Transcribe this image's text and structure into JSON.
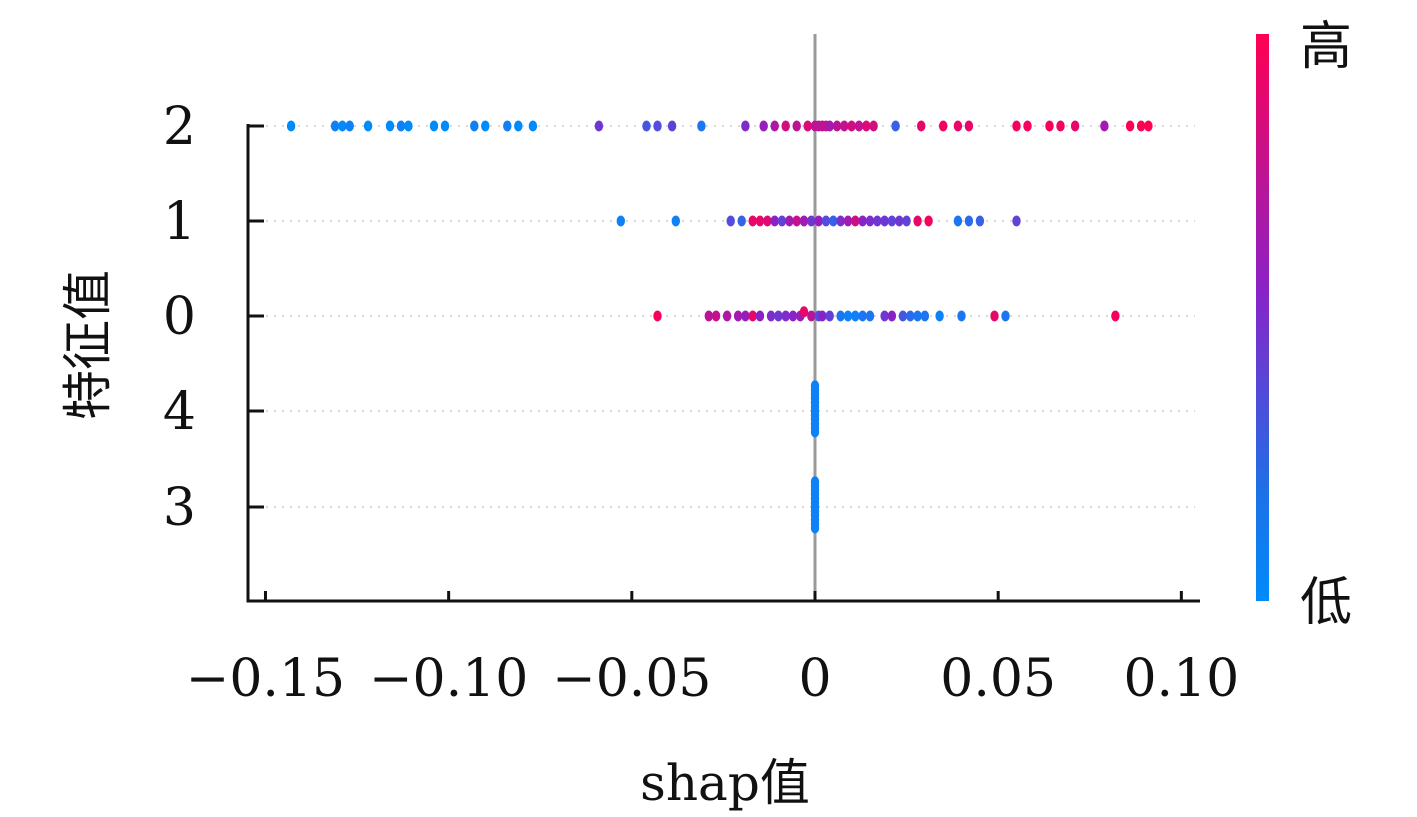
{
  "chart_data": {
    "type": "scatter",
    "subtype": "shap-beeswarm",
    "title": "",
    "xlabel": "shap值",
    "ylabel": "特征值",
    "xlim": [
      -0.155,
      0.105
    ],
    "x_ticks": [
      -0.15,
      -0.1,
      -0.05,
      0,
      0.05,
      0.1
    ],
    "x_tick_labels": [
      "−0.15",
      "−0.10",
      "−0.05",
      "0",
      "0.05",
      "0.10"
    ],
    "grid": "horizontal dotted",
    "colorbar": {
      "high_label": "高",
      "low_label": "低",
      "high_color": "#ff0052",
      "mid_color": "#8a22c7",
      "low_color": "#008bfb"
    },
    "features": [
      {
        "name": "2",
        "points": [
          {
            "x": -0.143,
            "v": 0.0
          },
          {
            "x": -0.131,
            "v": 0.05
          },
          {
            "x": -0.129,
            "v": 0.0
          },
          {
            "x": -0.127,
            "v": 0.05
          },
          {
            "x": -0.122,
            "v": 0.0
          },
          {
            "x": -0.116,
            "v": 0.0
          },
          {
            "x": -0.113,
            "v": 0.05
          },
          {
            "x": -0.111,
            "v": 0.0
          },
          {
            "x": -0.104,
            "v": 0.0
          },
          {
            "x": -0.101,
            "v": 0.0
          },
          {
            "x": -0.093,
            "v": 0.05
          },
          {
            "x": -0.09,
            "v": 0.0
          },
          {
            "x": -0.084,
            "v": 0.05
          },
          {
            "x": -0.081,
            "v": 0.0
          },
          {
            "x": -0.077,
            "v": 0.0
          },
          {
            "x": -0.059,
            "v": 0.4
          },
          {
            "x": -0.046,
            "v": 0.25
          },
          {
            "x": -0.043,
            "v": 0.3
          },
          {
            "x": -0.039,
            "v": 0.35
          },
          {
            "x": -0.031,
            "v": 0.1
          },
          {
            "x": -0.019,
            "v": 0.45
          },
          {
            "x": -0.014,
            "v": 0.55
          },
          {
            "x": -0.011,
            "v": 0.65
          },
          {
            "x": -0.008,
            "v": 0.8
          },
          {
            "x": -0.005,
            "v": 0.7
          },
          {
            "x": -0.002,
            "v": 0.85
          },
          {
            "x": 0.0,
            "v": 0.7
          },
          {
            "x": 0.001,
            "v": 0.75
          },
          {
            "x": 0.002,
            "v": 0.65
          },
          {
            "x": 0.003,
            "v": 0.8
          },
          {
            "x": 0.004,
            "v": 0.6
          },
          {
            "x": 0.006,
            "v": 0.7
          },
          {
            "x": 0.008,
            "v": 0.75
          },
          {
            "x": 0.01,
            "v": 0.8
          },
          {
            "x": 0.012,
            "v": 0.72
          },
          {
            "x": 0.014,
            "v": 0.85
          },
          {
            "x": 0.016,
            "v": 0.8
          },
          {
            "x": 0.022,
            "v": 0.2
          },
          {
            "x": 0.029,
            "v": 0.9
          },
          {
            "x": 0.035,
            "v": 0.95
          },
          {
            "x": 0.039,
            "v": 0.9
          },
          {
            "x": 0.042,
            "v": 0.9
          },
          {
            "x": 0.055,
            "v": 0.95
          },
          {
            "x": 0.058,
            "v": 0.95
          },
          {
            "x": 0.064,
            "v": 0.95
          },
          {
            "x": 0.067,
            "v": 0.95
          },
          {
            "x": 0.071,
            "v": 0.9
          },
          {
            "x": 0.079,
            "v": 0.6
          },
          {
            "x": 0.086,
            "v": 1.0
          },
          {
            "x": 0.089,
            "v": 1.0
          },
          {
            "x": 0.091,
            "v": 1.0
          }
        ]
      },
      {
        "name": "1",
        "points": [
          {
            "x": -0.053,
            "v": 0.05
          },
          {
            "x": -0.038,
            "v": 0.05
          },
          {
            "x": -0.023,
            "v": 0.3
          },
          {
            "x": -0.02,
            "v": 0.2
          },
          {
            "x": -0.017,
            "v": 0.9
          },
          {
            "x": -0.015,
            "v": 0.9
          },
          {
            "x": -0.013,
            "v": 0.85
          },
          {
            "x": -0.011,
            "v": 0.5
          },
          {
            "x": -0.009,
            "v": 0.35
          },
          {
            "x": -0.007,
            "v": 0.6
          },
          {
            "x": -0.005,
            "v": 0.75
          },
          {
            "x": -0.003,
            "v": 0.6
          },
          {
            "x": -0.001,
            "v": 0.4
          },
          {
            "x": 0.001,
            "v": 0.55
          },
          {
            "x": 0.003,
            "v": 0.3
          },
          {
            "x": 0.005,
            "v": 0.2
          },
          {
            "x": 0.007,
            "v": 0.45
          },
          {
            "x": 0.009,
            "v": 0.6
          },
          {
            "x": 0.011,
            "v": 0.8
          },
          {
            "x": 0.013,
            "v": 0.5
          },
          {
            "x": 0.015,
            "v": 0.45
          },
          {
            "x": 0.017,
            "v": 0.4
          },
          {
            "x": 0.019,
            "v": 0.4
          },
          {
            "x": 0.021,
            "v": 0.35
          },
          {
            "x": 0.023,
            "v": 0.4
          },
          {
            "x": 0.025,
            "v": 0.35
          },
          {
            "x": 0.028,
            "v": 0.9
          },
          {
            "x": 0.031,
            "v": 0.95
          },
          {
            "x": 0.039,
            "v": 0.1
          },
          {
            "x": 0.042,
            "v": 0.15
          },
          {
            "x": 0.045,
            "v": 0.2
          },
          {
            "x": 0.055,
            "v": 0.35
          }
        ]
      },
      {
        "name": "0",
        "points": [
          {
            "x": -0.043,
            "v": 0.95
          },
          {
            "x": -0.029,
            "v": 0.7
          },
          {
            "x": -0.027,
            "v": 0.75
          },
          {
            "x": -0.024,
            "v": 0.65
          },
          {
            "x": -0.021,
            "v": 0.6
          },
          {
            "x": -0.019,
            "v": 0.55
          },
          {
            "x": -0.017,
            "v": 0.9
          },
          {
            "x": -0.015,
            "v": 0.5
          },
          {
            "x": -0.012,
            "v": 0.45
          },
          {
            "x": -0.01,
            "v": 0.4
          },
          {
            "x": -0.008,
            "v": 0.45
          },
          {
            "x": -0.006,
            "v": 0.5
          },
          {
            "x": -0.004,
            "v": 0.55
          },
          {
            "x": -0.003,
            "v": 0.9
          },
          {
            "x": -0.001,
            "v": 0.7
          },
          {
            "x": 0.001,
            "v": 0.3
          },
          {
            "x": 0.002,
            "v": 0.5
          },
          {
            "x": 0.004,
            "v": 0.35
          },
          {
            "x": 0.007,
            "v": 0.1
          },
          {
            "x": 0.009,
            "v": 0.05
          },
          {
            "x": 0.011,
            "v": 0.05
          },
          {
            "x": 0.013,
            "v": 0.1
          },
          {
            "x": 0.015,
            "v": 0.1
          },
          {
            "x": 0.019,
            "v": 0.4
          },
          {
            "x": 0.021,
            "v": 0.5
          },
          {
            "x": 0.024,
            "v": 0.25
          },
          {
            "x": 0.026,
            "v": 0.15
          },
          {
            "x": 0.028,
            "v": 0.1
          },
          {
            "x": 0.03,
            "v": 0.1
          },
          {
            "x": 0.034,
            "v": 0.05
          },
          {
            "x": 0.04,
            "v": 0.1
          },
          {
            "x": 0.049,
            "v": 0.9
          },
          {
            "x": 0.052,
            "v": 0.1
          },
          {
            "x": 0.082,
            "v": 0.95
          }
        ]
      },
      {
        "name": "4",
        "points": [
          {
            "x": 0.0,
            "v": 0.05
          },
          {
            "x": 0.0,
            "v": 0.05
          },
          {
            "x": 0.0,
            "v": 0.05
          },
          {
            "x": 0.0,
            "v": 0.05
          },
          {
            "x": 0.0,
            "v": 0.05
          },
          {
            "x": 0.0,
            "v": 0.05
          },
          {
            "x": 0.0,
            "v": 0.05
          },
          {
            "x": 0.0,
            "v": 0.05
          },
          {
            "x": 0.0,
            "v": 0.05
          },
          {
            "x": 0.0,
            "v": 0.05
          },
          {
            "x": 0.0,
            "v": 0.05
          },
          {
            "x": 0.0,
            "v": 0.05
          }
        ]
      },
      {
        "name": "3",
        "points": [
          {
            "x": 0.0,
            "v": 0.05
          },
          {
            "x": 0.0,
            "v": 0.05
          },
          {
            "x": 0.0,
            "v": 0.05
          },
          {
            "x": 0.0,
            "v": 0.05
          },
          {
            "x": 0.0,
            "v": 0.05
          },
          {
            "x": 0.0,
            "v": 0.05
          },
          {
            "x": 0.0,
            "v": 0.05
          },
          {
            "x": 0.0,
            "v": 0.05
          },
          {
            "x": 0.0,
            "v": 0.05
          },
          {
            "x": 0.0,
            "v": 0.05
          },
          {
            "x": 0.0,
            "v": 0.05
          },
          {
            "x": 0.0,
            "v": 0.05
          }
        ]
      }
    ]
  }
}
